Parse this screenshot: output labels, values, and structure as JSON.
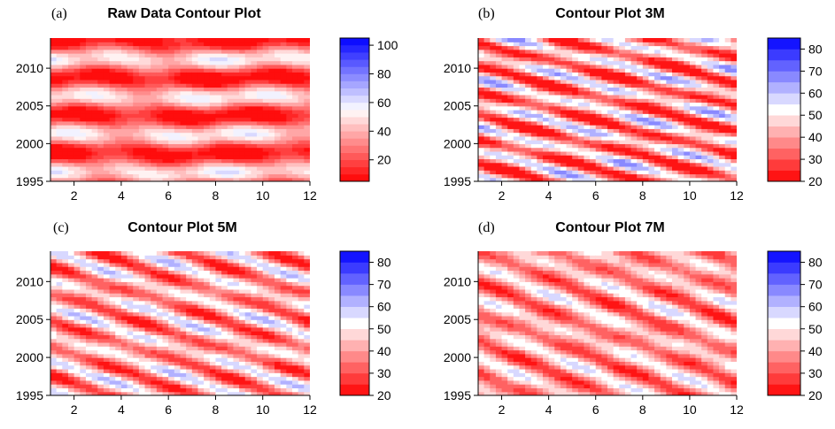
{
  "colors": {
    "low": "#ff0000",
    "mid": "#ffffff",
    "high": "#0000ff"
  },
  "chart_data": [
    {
      "type": "heatmap",
      "letter": "(a)",
      "title": "Raw Data Contour Plot",
      "xlabel": "",
      "ylabel": "",
      "xlim": [
        1,
        12
      ],
      "ylim": [
        1995,
        2014
      ],
      "xticks": [
        "2",
        "4",
        "6",
        "8",
        "10",
        "12"
      ],
      "yticks": [
        "1995",
        "2000",
        "2005",
        "2010"
      ],
      "zlim": [
        5,
        105
      ],
      "levels": [
        5,
        10,
        15,
        20,
        25,
        30,
        35,
        40,
        45,
        50,
        55,
        60,
        65,
        70,
        75,
        80,
        85,
        90,
        95,
        100,
        105
      ],
      "colorbar_ticks": [
        "20",
        "40",
        "60",
        "80",
        "100"
      ],
      "base": 28,
      "amp": 22,
      "period": 5,
      "slope": 0.0
    },
    {
      "type": "heatmap",
      "letter": "(b)",
      "title": "Contour Plot 3M",
      "xlabel": "",
      "ylabel": "",
      "xlim": [
        1,
        12
      ],
      "ylim": [
        1995,
        2014
      ],
      "xticks": [
        "2",
        "4",
        "6",
        "8",
        "10",
        "12"
      ],
      "yticks": [
        "1995",
        "2000",
        "2005",
        "2010"
      ],
      "zlim": [
        20,
        85
      ],
      "levels": [
        20,
        25,
        30,
        35,
        40,
        45,
        50,
        55,
        60,
        65,
        70,
        75,
        80,
        85
      ],
      "colorbar_ticks": [
        "20",
        "30",
        "40",
        "50",
        "60",
        "70",
        "80"
      ],
      "base": 40,
      "amp": 18,
      "period": 3.2,
      "slope": 0.35
    },
    {
      "type": "heatmap",
      "letter": "(c)",
      "title": "Contour Plot 5M",
      "xlabel": "",
      "ylabel": "",
      "xlim": [
        1,
        12
      ],
      "ylim": [
        1995,
        2014
      ],
      "xticks": [
        "2",
        "4",
        "6",
        "8",
        "10",
        "12"
      ],
      "yticks": [
        "1995",
        "2000",
        "2005",
        "2010"
      ],
      "zlim": [
        20,
        85
      ],
      "levels": [
        20,
        25,
        30,
        35,
        40,
        45,
        50,
        55,
        60,
        65,
        70,
        75,
        80,
        85
      ],
      "colorbar_ticks": [
        "20",
        "30",
        "40",
        "50",
        "60",
        "70",
        "80"
      ],
      "base": 41,
      "amp": 14,
      "period": 3.6,
      "slope": 0.45
    },
    {
      "type": "heatmap",
      "letter": "(d)",
      "title": "Contour Plot 7M",
      "xlabel": "",
      "ylabel": "",
      "xlim": [
        1,
        12
      ],
      "ylim": [
        1995,
        2014
      ],
      "xticks": [
        "2",
        "4",
        "6",
        "8",
        "10",
        "12"
      ],
      "yticks": [
        "1995",
        "2000",
        "2005",
        "2010"
      ],
      "zlim": [
        20,
        85
      ],
      "levels": [
        20,
        25,
        30,
        35,
        40,
        45,
        50,
        55,
        60,
        65,
        70,
        75,
        80,
        85
      ],
      "colorbar_ticks": [
        "20",
        "30",
        "40",
        "50",
        "60",
        "70",
        "80"
      ],
      "base": 40,
      "amp": 12,
      "period": 4.0,
      "slope": 0.55
    }
  ]
}
